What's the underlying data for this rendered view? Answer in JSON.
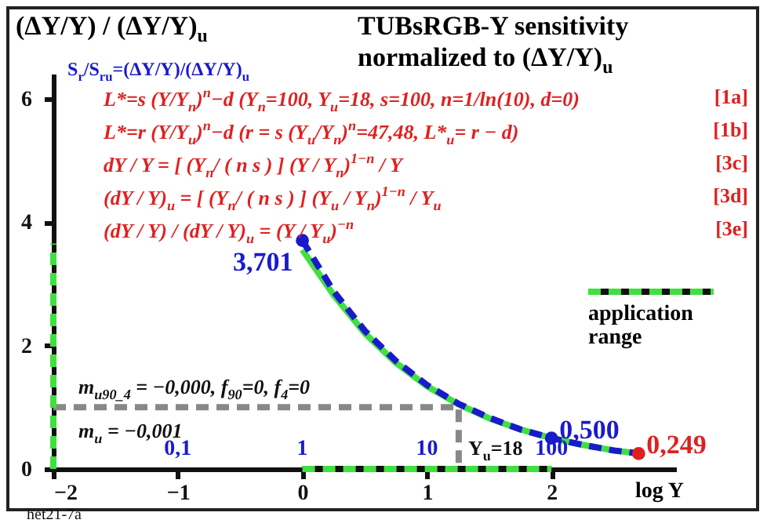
{
  "chart_data": {
    "type": "line",
    "title": "TUBsRGB-Y sensitivity",
    "subtitle": "normalized to (ΔY/Y)$_{u}$",
    "ylabel": "(ΔY/Y) / (ΔY/Y)$_{u}$",
    "xlabel": "log Y",
    "xlim": [
      -2,
      3
    ],
    "xticks": [
      -2,
      -1,
      0,
      1,
      2
    ],
    "x2lim": [
      0.01,
      1000
    ],
    "x2ticks": [
      {
        "value": 0.1,
        "label": "0,1"
      },
      1,
      10,
      100
    ],
    "log": "x2",
    "ylim": [
      0,
      6.4
    ],
    "yticks": [
      0,
      2,
      4,
      6
    ],
    "legend": "right",
    "series": [
      {
        "color": "#40e040",
        "line_style": "solid",
        "x": [
          0,
          0.25,
          0.5,
          0.75,
          1,
          1.25,
          1.5,
          1.75,
          2,
          2.25,
          2.5,
          2.7
        ],
        "values": [
          3.55,
          2.82,
          2.2,
          1.72,
          1.34,
          1.05,
          0.82,
          0.64,
          0.5,
          0.39,
          0.3,
          0.25
        ]
      },
      {
        "color": "#1a1acc",
        "line_style": "dashed",
        "x": [
          0,
          0.25,
          0.5,
          0.75,
          1,
          1.25,
          1.5,
          1.75,
          2,
          2.25,
          2.5,
          2.7
        ],
        "values": [
          3.7,
          2.88,
          2.24,
          1.75,
          1.36,
          1.06,
          0.83,
          0.64,
          0.5,
          0.39,
          0.3,
          0.25
        ]
      },
      {
        "type": "scatter",
        "color": "#1a1acc",
        "x": [
          0,
          2
        ],
        "values": [
          3.701,
          0.5
        ],
        "value_labels": [
          "3,701",
          "0,500"
        ]
      },
      {
        "type": "scatter",
        "color": "#e02020",
        "x": [
          2.7
        ],
        "values": [
          0.249
        ],
        "value_labels": [
          "0,249"
        ]
      },
      {
        "color": "#888888",
        "line_style": "dashed",
        "x": [
          -2,
          1.255,
          1.255
        ],
        "values": [
          1,
          1,
          0
        ]
      },
      {
        "name": "application range",
        "color": "#40e040",
        "line_style": "dashed",
        "x": [
          0,
          2
        ],
        "values": [
          0,
          0
        ]
      },
      {
        "color": "#40e040",
        "line_style": "dashed",
        "x": [
          -2,
          -2
        ],
        "values": [
          0,
          3.65
        ]
      }
    ],
    "annotations": [
      "S$_{r}$/S$_{ru}$=(ΔY/Y)/(ΔY/Y)$_{u}$",
      "L*=s (Y/Y$_{n}$)$^{n}$−d   (Y$_{n}$=100, Y$_{u}$=18, s=100, n=1/ln(10), d=0)",
      "[1a]",
      "L*=r (Y/Y$_{u}$)$^{n}$−d   (r = s (Y$_{u}$/Y$_{n}$)$^{n}$=47,48, L*$_{u}$= r − d)",
      "[1b]",
      "dY / Y = [ (Y$_{n}$/ ( n s ) ] (Y / Y$_{n}$)$^{1−n}$ / Y",
      "[3c]",
      "(dY / Y)$_{u}$ = [ (Y$_{n}$/ ( n s ) ] (Y$_{u}$ / Y$_{n}$)$^{1−n}$ / Y$_{u}$",
      "[3d]",
      "(dY / Y) / (dY / Y)$_{u}$ = (Y / Y$_{u}$)$^{−n}$",
      "[3e]",
      "m$_{u90_4}$ = −0,000, f$_{90}$=0, f$_{4}$=0",
      "m$_{u}$ = −0,001",
      {
        "text": "Y$_{u}$=18",
        "x": 1.255,
        "y": 0
      },
      "het21-7a"
    ]
  }
}
